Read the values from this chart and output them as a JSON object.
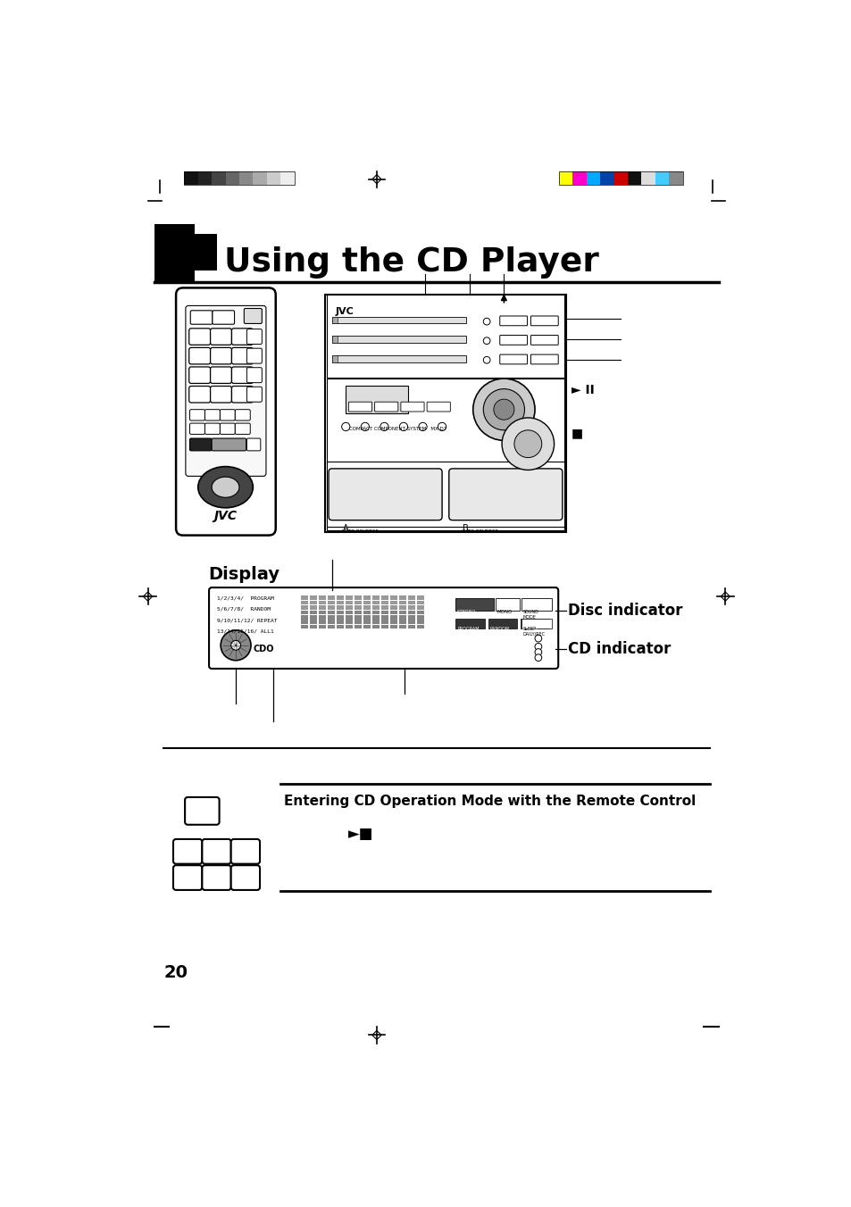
{
  "title": "Using the CD Player",
  "page_number": "20",
  "background_color": "#ffffff",
  "text_color": "#000000",
  "gray_bar_colors": [
    "#111111",
    "#222222",
    "#444444",
    "#666666",
    "#888888",
    "#aaaaaa",
    "#cccccc",
    "#eeeeee"
  ],
  "color_bar_colors": [
    "#ffff00",
    "#ff00cc",
    "#00aaff",
    "#0044aa",
    "#cc0000",
    "#111111",
    "#dddddd",
    "#44ccff",
    "#888888"
  ],
  "section_title": "Display",
  "section2_title": "Entering CD Operation Mode with the Remote Control",
  "disc_indicator_label": "Disc indicator",
  "cd_indicator_label": "CD indicator",
  "play_stop_symbol": "►■"
}
